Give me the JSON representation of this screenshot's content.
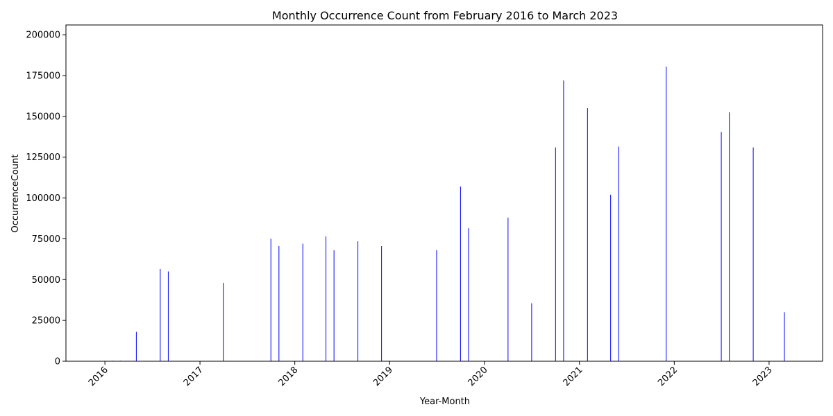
{
  "chart_data": {
    "type": "bar",
    "title": "Monthly Occurrence Count from February 2016 to March 2023",
    "xlabel": "Year-Month",
    "ylabel": "OccurrenceCount",
    "xlim": [
      "2015-08-04",
      "2023-07-26"
    ],
    "ylim": [
      0,
      206000
    ],
    "x_ticks": [
      "2016",
      "2017",
      "2018",
      "2019",
      "2020",
      "2021",
      "2022",
      "2023"
    ],
    "y_ticks": [
      "0",
      "25000",
      "50000",
      "75000",
      "100000",
      "125000",
      "150000",
      "175000",
      "200000"
    ],
    "x_tick_rotation_deg": 45,
    "grid": false,
    "bar_color": "#0000ff",
    "x": [
      "2016-02-01",
      "2016-03-01",
      "2016-05-01",
      "2016-08-01",
      "2016-09-01",
      "2017-04-01",
      "2017-10-01",
      "2017-11-01",
      "2018-02-01",
      "2018-05-01",
      "2018-06-01",
      "2018-09-01",
      "2018-12-01",
      "2019-07-01",
      "2019-10-01",
      "2019-11-01",
      "2020-04-01",
      "2020-07-01",
      "2020-10-01",
      "2020-11-01",
      "2021-02-01",
      "2021-05-01",
      "2021-06-01",
      "2021-12-01",
      "2022-07-01",
      "2022-08-01",
      "2022-11-01",
      "2023-03-01"
    ],
    "values": [
      300,
      300,
      18000,
      56500,
      55000,
      48000,
      75000,
      70500,
      72000,
      76500,
      68000,
      73500,
      70500,
      68000,
      107000,
      81500,
      88000,
      35500,
      131000,
      172000,
      155000,
      102000,
      131500,
      180500,
      140500,
      152500,
      131000,
      30000
    ]
  }
}
